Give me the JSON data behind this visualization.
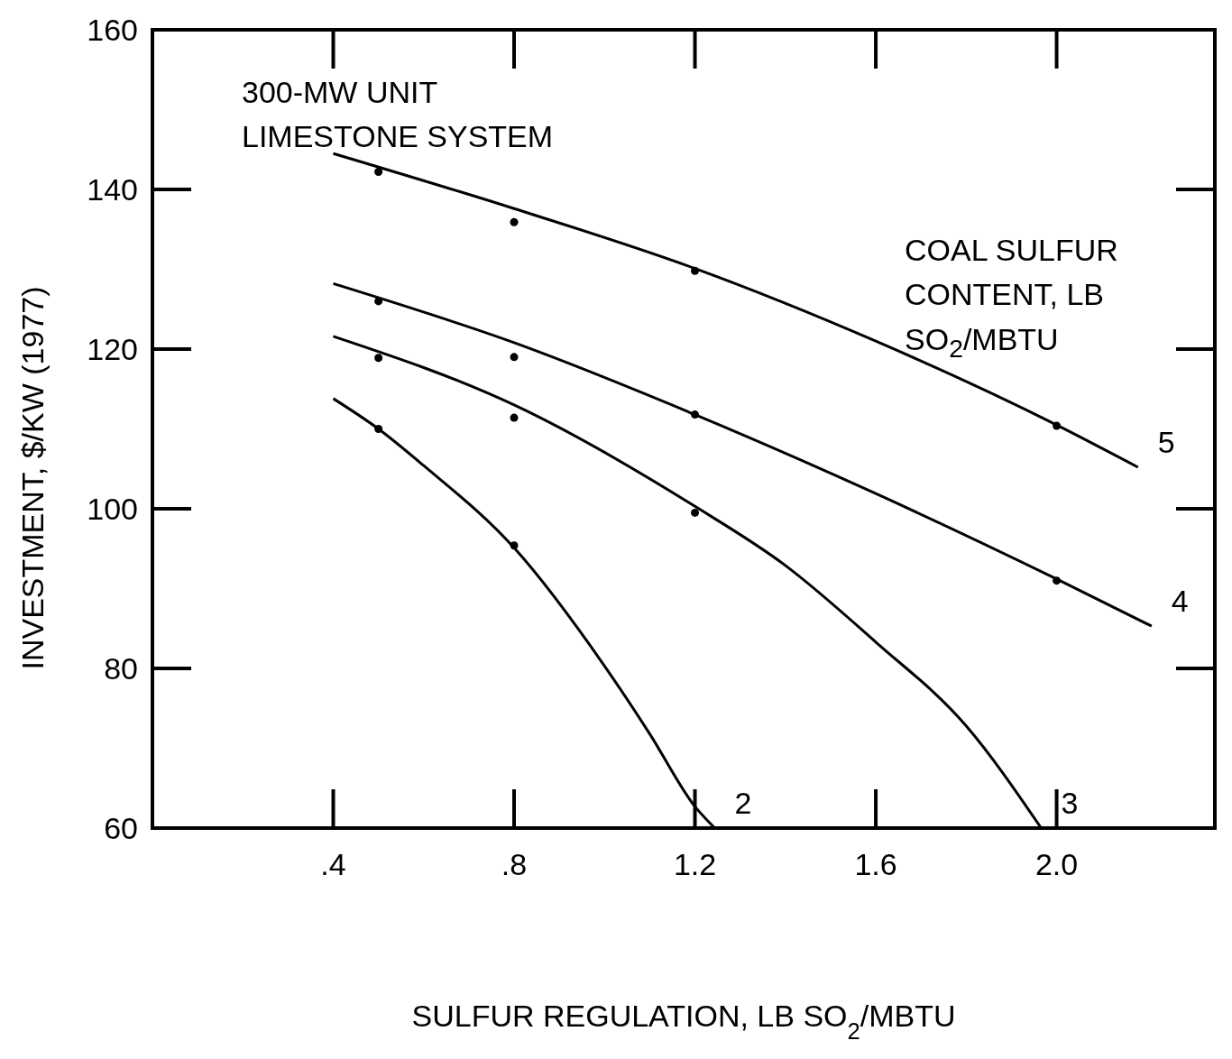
{
  "chart_data": {
    "type": "line",
    "xlabel": "SULFUR REGULATION, LB SO$_{2}$/MBTU",
    "ylabel": "INVESTMENT, $/KW (1977)",
    "annotations": [
      "300-MW UNIT\nLIMESTONE SYSTEM",
      "COAL SULFUR\nCONTENT, LB\nSO$_{2}$/MBTU"
    ],
    "xlim": [
      0,
      2.35
    ],
    "ylim": [
      60,
      160
    ],
    "xticks": [
      {
        "value": 0.4,
        "label": ".4"
      },
      {
        "value": 0.8,
        "label": ".8"
      },
      1.2,
      1.6,
      {
        "value": 2.0,
        "label": "2.0"
      }
    ],
    "yticks": [
      60,
      80,
      100,
      120,
      140,
      160
    ],
    "legend": "right",
    "line_style": "solid",
    "series": [
      {
        "name": "5",
        "color": "#000000",
        "marker": "none",
        "x": [
          0.4,
          0.8,
          1.2,
          1.6,
          2.0,
          2.18
        ],
        "values": [
          144.5,
          137.6,
          130.1,
          121,
          110.5,
          105.2
        ]
      },
      {
        "name": "4",
        "color": "#000000",
        "marker": "none",
        "x": [
          0.4,
          0.8,
          1.2,
          1.6,
          2.0,
          2.21
        ],
        "values": [
          128.2,
          120.8,
          111.8,
          101.9,
          91.2,
          85.3
        ]
      },
      {
        "name": "3",
        "color": "#000000",
        "marker": "none",
        "x": [
          0.4,
          0.8,
          1.2,
          1.4,
          1.6,
          1.8,
          1.966
        ],
        "values": [
          121.6,
          113,
          100.3,
          92.9,
          83.3,
          72.8,
          60
        ]
      },
      {
        "name": "2",
        "color": "#000000",
        "marker": "none",
        "x": [
          0.4,
          0.5,
          0.6,
          0.8,
          1.0,
          1.1,
          1.2,
          1.244
        ],
        "values": [
          113.8,
          110,
          105.4,
          95.1,
          80.3,
          71.8,
          62.7,
          60
        ]
      },
      {
        "type": "scatter",
        "color": "#000000",
        "marker": "circle",
        "x": [
          0.5,
          0.8,
          1.2,
          2.0,
          0.5,
          0.8,
          1.2,
          2.0,
          0.5,
          0.8,
          1.2,
          0.5,
          0.8
        ],
        "values": [
          142.2,
          135.9,
          129.8,
          110.4,
          126,
          119,
          111.8,
          91,
          118.9,
          111.4,
          99.5,
          110,
          95.4
        ]
      }
    ]
  }
}
